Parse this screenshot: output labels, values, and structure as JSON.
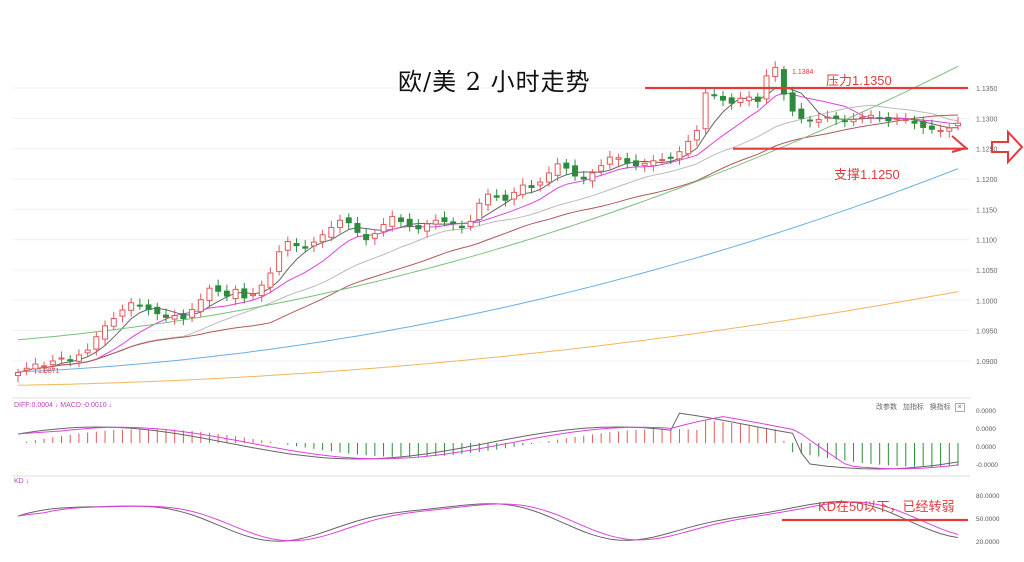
{
  "title": "欧/美 2 小时走势",
  "annotations": {
    "resistance_label": "压力1.1350",
    "support_label": "支撑1.1250",
    "kd_note": "KD在50以下，已经转弱",
    "high_marker": "1.1384",
    "low_marker": "1.0871"
  },
  "price_axis_ticks": [
    "1.1350",
    "1.1300",
    "1.1250",
    "1.1200",
    "1.1150",
    "1.1100",
    "1.1050",
    "1.1000",
    "1.0950",
    "1.0900"
  ],
  "macd_panel": {
    "legend": "DIFF:0.0004 ↓ MACD:-0.0010 ↓",
    "buttons": [
      "改参数",
      "加指标",
      "换指标",
      "×"
    ],
    "ticks": [
      "0.0000",
      "0.0000",
      "0.0000",
      "-0.0000"
    ]
  },
  "kd_panel": {
    "legend": "KD ↓",
    "ticks": [
      "80.0000",
      "50.0000",
      "20.0000"
    ]
  },
  "colors": {
    "up": "#e05a5a",
    "down": "#2e8b3d",
    "annotation": "#e23b3b",
    "ma5": "#666666",
    "ma10": "#e040e0",
    "ma20": "#bbbbbb",
    "ma30": "#b05a5a",
    "ma60": "#7cbf7c",
    "ma120": "#6aaee8",
    "ma250": "#f2b55a"
  },
  "chart_data": {
    "type": "candlestick",
    "resistance": 1.135,
    "support": 1.125,
    "ylim": [
      1.0871,
      1.1384
    ],
    "close": [
      1.0881,
      1.0888,
      1.0895,
      1.0892,
      1.09,
      1.0905,
      1.0902,
      1.091,
      1.0918,
      1.094,
      1.0958,
      1.097,
      1.0984,
      1.0996,
      1.0991,
      1.0985,
      1.0978,
      1.0972,
      1.0975,
      1.097,
      1.0985,
      1.1001,
      1.102,
      1.1015,
      1.1007,
      1.1018,
      1.1004,
      1.101,
      1.1025,
      1.1045,
      1.108,
      1.1097,
      1.109,
      1.1086,
      1.1096,
      1.1108,
      1.112,
      1.1132,
      1.1128,
      1.1112,
      1.11,
      1.111,
      1.1125,
      1.1138,
      1.113,
      1.1122,
      1.1118,
      1.1126,
      1.1132,
      1.113,
      1.1126,
      1.112,
      1.113,
      1.116,
      1.1175,
      1.117,
      1.1165,
      1.1178,
      1.119,
      1.1186,
      1.1195,
      1.121,
      1.1225,
      1.1218,
      1.1205,
      1.12,
      1.121,
      1.1222,
      1.1236,
      1.1235,
      1.1226,
      1.1222,
      1.1226,
      1.123,
      1.1232,
      1.1235,
      1.1245,
      1.1262,
      1.128,
      1.1342,
      1.1338,
      1.133,
      1.1325,
      1.1333,
      1.1335,
      1.1328,
      1.137,
      1.1384,
      1.134,
      1.1312,
      1.13,
      1.1296,
      1.1298,
      1.1302,
      1.13,
      1.1295,
      1.1298,
      1.1302,
      1.1305,
      1.13,
      1.1296,
      1.13,
      1.1298,
      1.1292,
      1.1285,
      1.1282,
      1.128,
      1.1284,
      1.1292
    ]
  }
}
